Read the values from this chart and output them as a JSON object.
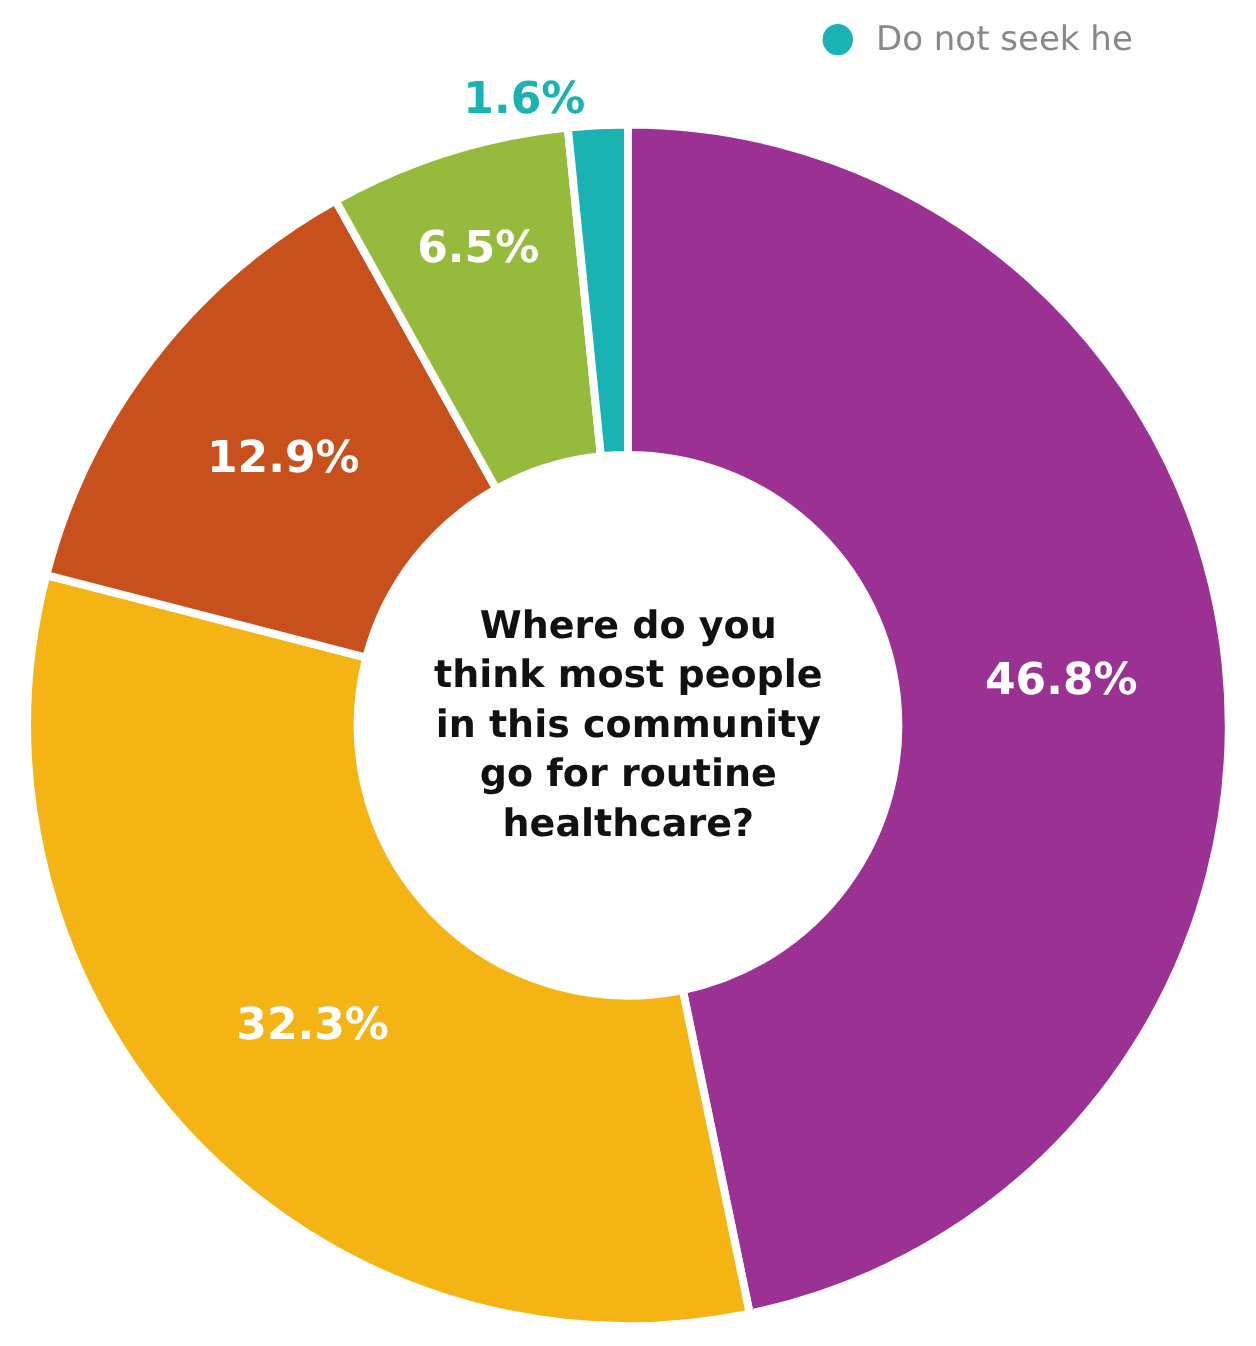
{
  "chart_data": {
    "type": "donut",
    "title": "Where do you think most people in this community go for routine healthcare?",
    "categories": [
      null,
      null,
      null,
      null,
      "Do not seek he"
    ],
    "values": [
      46.8,
      32.3,
      12.9,
      6.5,
      1.6
    ],
    "colors": [
      "#9b3192",
      "#f4b414",
      "#c8501c",
      "#96bb3c",
      "#1ab3b3"
    ],
    "value_labels": [
      "46.8%",
      "32.3%",
      "12.9%",
      "6.5%",
      "1.6%"
    ],
    "legend": "top right"
  }
}
